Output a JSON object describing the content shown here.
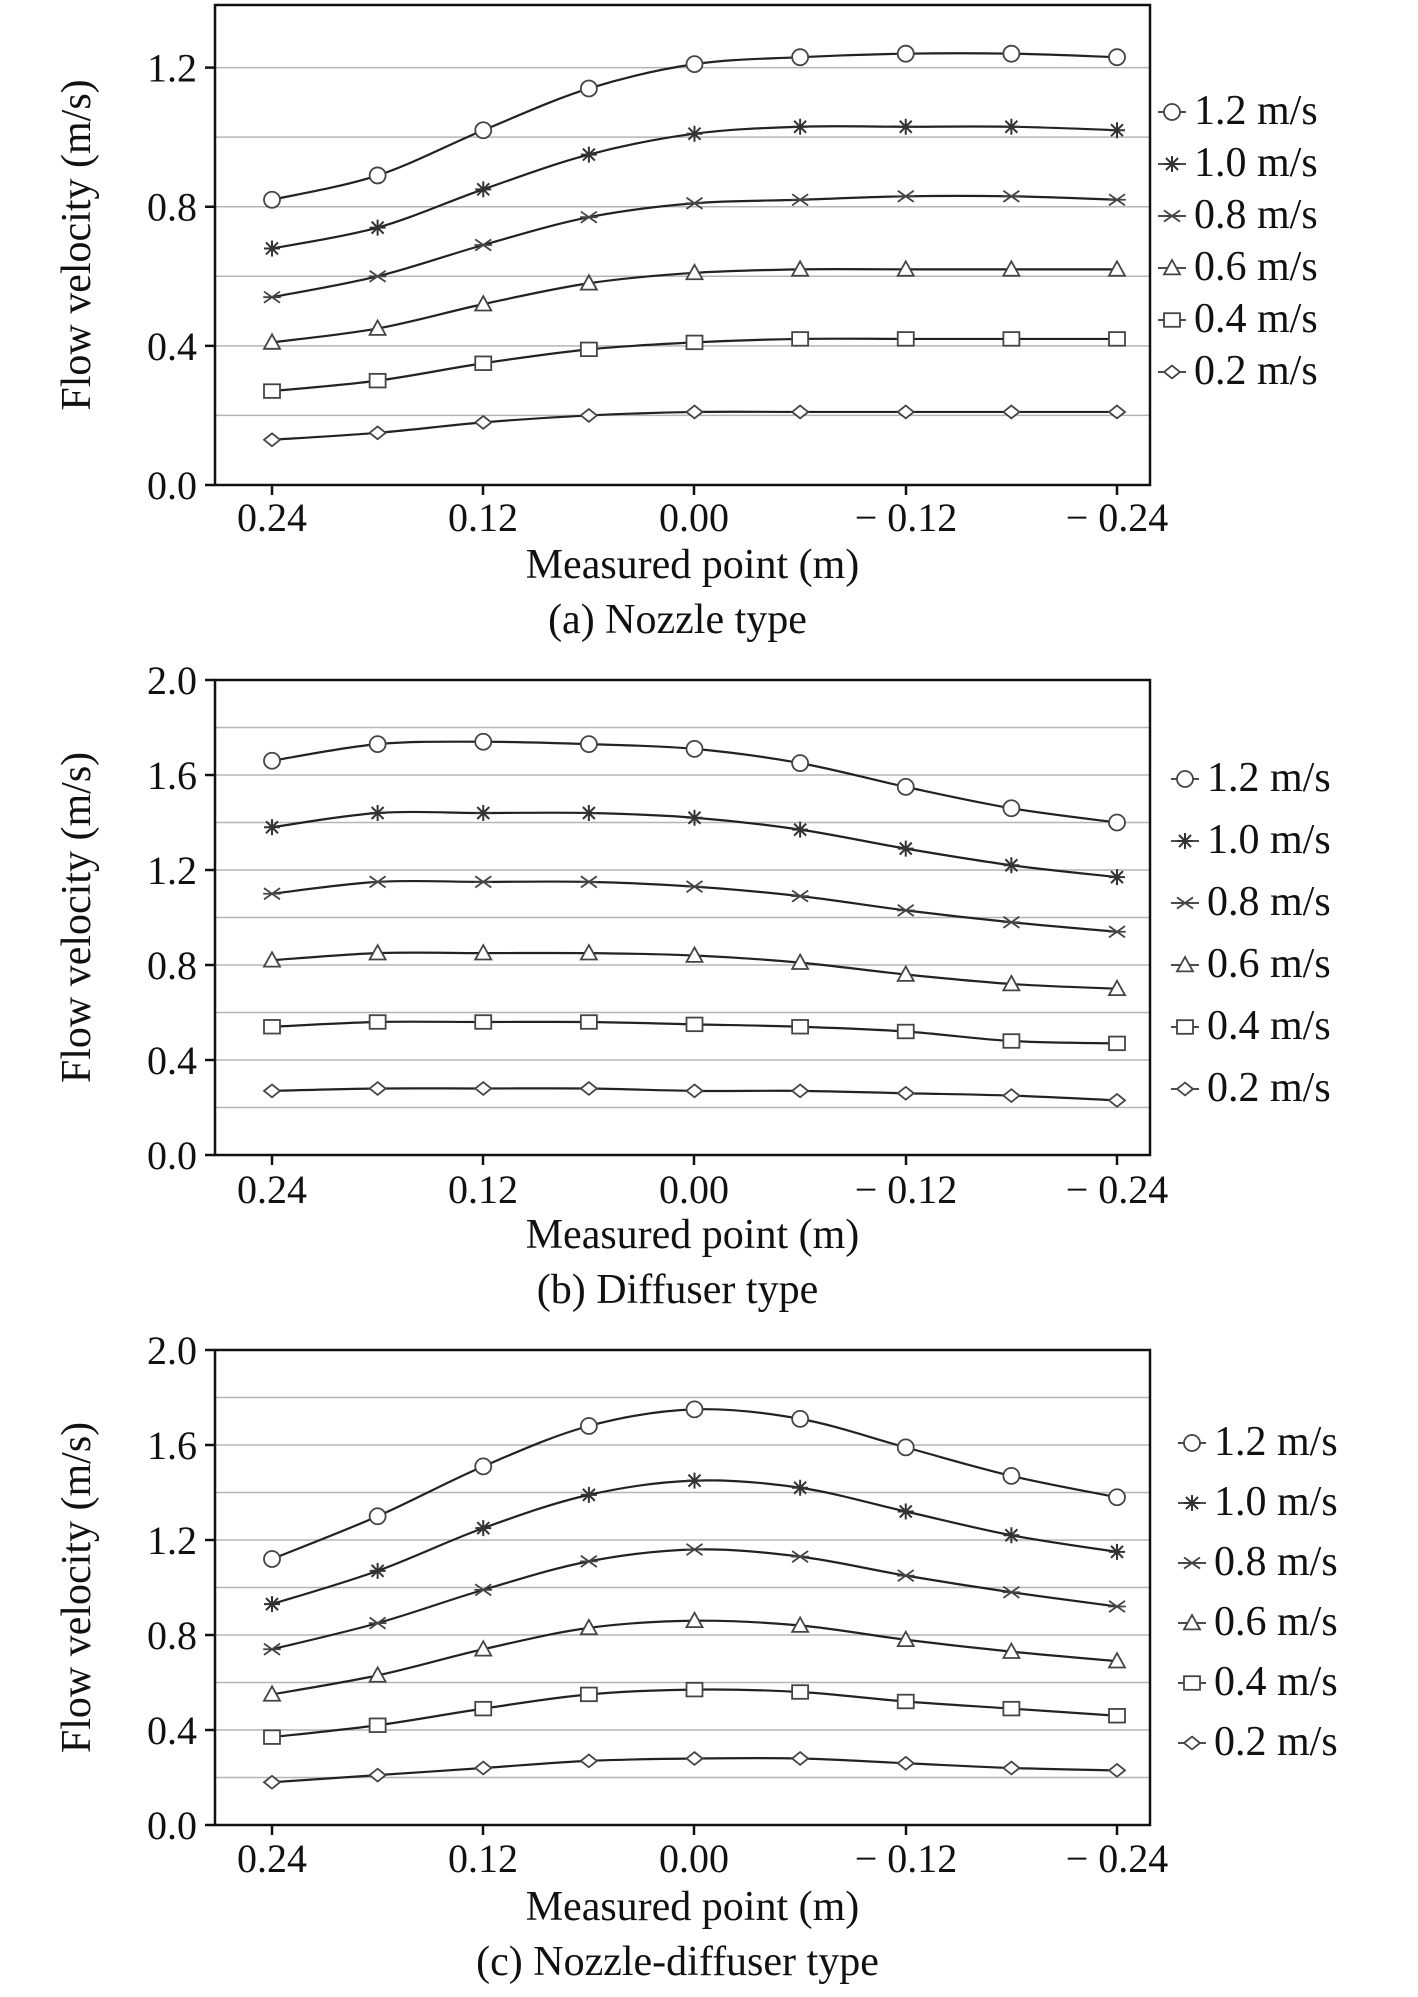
{
  "chart_data": [
    {
      "type": "line",
      "caption": "(a) Nozzle type",
      "xlabel": "Measured point (m)",
      "ylabel": "Flow velocity (m/s)",
      "x_tick_labels": [
        "0.24",
        "0.12",
        "0.00",
        "− 0.12",
        "− 0.24"
      ],
      "x": [
        0.24,
        0.18,
        0.12,
        0.06,
        0.0,
        -0.06,
        -0.12,
        -0.18,
        -0.24
      ],
      "y_ticks": [
        "0.0",
        "0.4",
        "0.8",
        "1.2"
      ],
      "ylim": [
        0,
        1.38
      ],
      "grid": "horizontal",
      "legend_position": "right",
      "series": [
        {
          "name": "1.2 m/s",
          "marker": "circle",
          "values": [
            0.82,
            0.89,
            1.02,
            1.14,
            1.21,
            1.23,
            1.24,
            1.24,
            1.23
          ]
        },
        {
          "name": "1.0 m/s",
          "marker": "asterisk",
          "values": [
            0.68,
            0.74,
            0.85,
            0.95,
            1.01,
            1.03,
            1.03,
            1.03,
            1.02
          ]
        },
        {
          "name": "0.8 m/s",
          "marker": "x",
          "values": [
            0.54,
            0.6,
            0.69,
            0.77,
            0.81,
            0.82,
            0.83,
            0.83,
            0.82
          ]
        },
        {
          "name": "0.6 m/s",
          "marker": "triangle",
          "values": [
            0.41,
            0.45,
            0.52,
            0.58,
            0.61,
            0.62,
            0.62,
            0.62,
            0.62
          ]
        },
        {
          "name": "0.4 m/s",
          "marker": "square",
          "values": [
            0.27,
            0.3,
            0.35,
            0.39,
            0.41,
            0.42,
            0.42,
            0.42,
            0.42
          ]
        },
        {
          "name": "0.2 m/s",
          "marker": "diamond",
          "values": [
            0.13,
            0.15,
            0.18,
            0.2,
            0.21,
            0.21,
            0.21,
            0.21,
            0.21
          ]
        }
      ]
    },
    {
      "type": "line",
      "caption": "(b) Diffuser type",
      "xlabel": "Measured point (m)",
      "ylabel": "Flow velocity (m/s)",
      "x_tick_labels": [
        "0.24",
        "0.12",
        "0.00",
        "− 0.12",
        "− 0.24"
      ],
      "x": [
        0.24,
        0.18,
        0.12,
        0.06,
        0.0,
        -0.06,
        -0.12,
        -0.18,
        -0.24
      ],
      "y_ticks": [
        "0.0",
        "0.4",
        "0.8",
        "1.2",
        "1.6",
        "2.0"
      ],
      "ylim": [
        0,
        2.0
      ],
      "grid": "horizontal",
      "legend_position": "right",
      "series": [
        {
          "name": "1.2 m/s",
          "marker": "circle",
          "values": [
            1.66,
            1.73,
            1.74,
            1.73,
            1.71,
            1.65,
            1.55,
            1.46,
            1.4
          ]
        },
        {
          "name": "1.0 m/s",
          "marker": "asterisk",
          "values": [
            1.38,
            1.44,
            1.44,
            1.44,
            1.42,
            1.37,
            1.29,
            1.22,
            1.17
          ]
        },
        {
          "name": "0.8 m/s",
          "marker": "x",
          "values": [
            1.1,
            1.15,
            1.15,
            1.15,
            1.13,
            1.09,
            1.03,
            0.98,
            0.94
          ]
        },
        {
          "name": "0.6 m/s",
          "marker": "triangle",
          "values": [
            0.82,
            0.85,
            0.85,
            0.85,
            0.84,
            0.81,
            0.76,
            0.72,
            0.7
          ]
        },
        {
          "name": "0.4 m/s",
          "marker": "square",
          "values": [
            0.54,
            0.56,
            0.56,
            0.56,
            0.55,
            0.54,
            0.52,
            0.48,
            0.47
          ]
        },
        {
          "name": "0.2 m/s",
          "marker": "diamond",
          "values": [
            0.27,
            0.28,
            0.28,
            0.28,
            0.27,
            0.27,
            0.26,
            0.25,
            0.23
          ]
        }
      ]
    },
    {
      "type": "line",
      "caption": "(c) Nozzle-diffuser type",
      "xlabel": "Measured point (m)",
      "ylabel": "Flow velocity (m/s)",
      "x_tick_labels": [
        "0.24",
        "0.12",
        "0.00",
        "− 0.12",
        "− 0.24"
      ],
      "x": [
        0.24,
        0.18,
        0.12,
        0.06,
        0.0,
        -0.06,
        -0.12,
        -0.18,
        -0.24
      ],
      "y_ticks": [
        "0.0",
        "0.4",
        "0.8",
        "1.2",
        "1.6",
        "2.0"
      ],
      "ylim": [
        0,
        2.0
      ],
      "grid": "horizontal",
      "legend_position": "right",
      "series": [
        {
          "name": "1.2 m/s",
          "marker": "circle",
          "values": [
            1.12,
            1.3,
            1.51,
            1.68,
            1.75,
            1.71,
            1.59,
            1.47,
            1.38
          ]
        },
        {
          "name": "1.0 m/s",
          "marker": "asterisk",
          "values": [
            0.93,
            1.07,
            1.25,
            1.39,
            1.45,
            1.42,
            1.32,
            1.22,
            1.15
          ]
        },
        {
          "name": "0.8 m/s",
          "marker": "x",
          "values": [
            0.74,
            0.85,
            0.99,
            1.11,
            1.16,
            1.13,
            1.05,
            0.98,
            0.92
          ]
        },
        {
          "name": "0.6 m/s",
          "marker": "triangle",
          "values": [
            0.55,
            0.63,
            0.74,
            0.83,
            0.86,
            0.84,
            0.78,
            0.73,
            0.69
          ]
        },
        {
          "name": "0.4 m/s",
          "marker": "square",
          "values": [
            0.37,
            0.42,
            0.49,
            0.55,
            0.57,
            0.56,
            0.52,
            0.49,
            0.46
          ]
        },
        {
          "name": "0.2 m/s",
          "marker": "diamond",
          "values": [
            0.18,
            0.21,
            0.24,
            0.27,
            0.28,
            0.28,
            0.26,
            0.24,
            0.23
          ]
        }
      ]
    }
  ]
}
